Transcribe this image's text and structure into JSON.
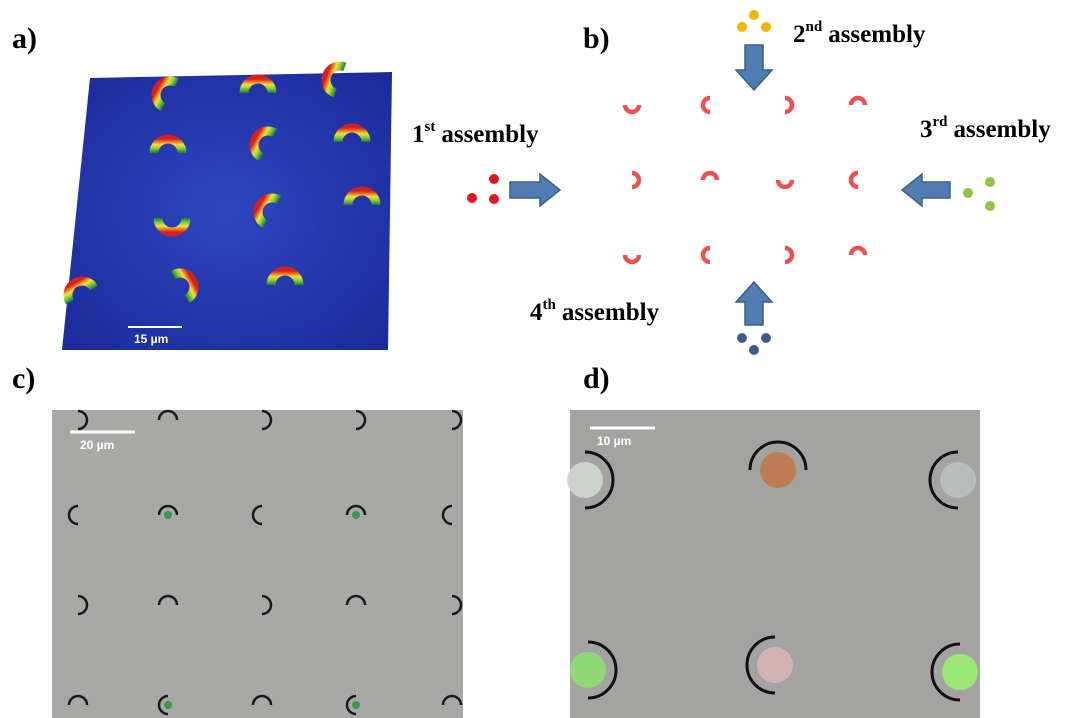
{
  "panels": [
    {
      "label": "a)",
      "scale_bar": "15 µm"
    },
    {
      "label": "b)"
    },
    {
      "label": "c)",
      "scale_bar": "20 µm"
    },
    {
      "label": "d)",
      "scale_bar": "10 µm"
    }
  ],
  "assemblies": [
    {
      "number": "1",
      "suffix": "st",
      "text": "assembly"
    },
    {
      "number": "2",
      "suffix": "nd",
      "text": "assembly"
    },
    {
      "number": "3",
      "suffix": "rd",
      "text": "assembly"
    },
    {
      "number": "4",
      "suffix": "th",
      "text": "assembly"
    }
  ]
}
